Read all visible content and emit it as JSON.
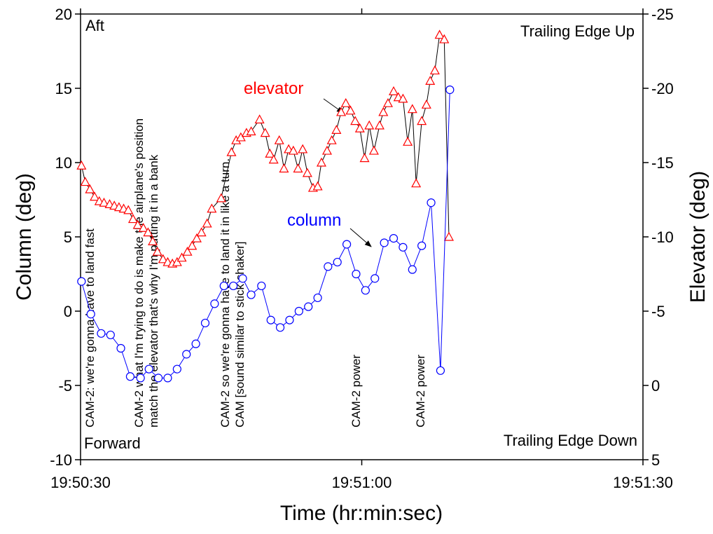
{
  "chart_data": {
    "type": "line",
    "x_label": "Time (hr:min:sec)",
    "y_label": "Column (deg)",
    "y2_label": "Elevator (deg)",
    "xlim": [
      "19:50:30",
      "19:51:30"
    ],
    "xticks": [
      "19:50:30",
      "19:51:00",
      "19:51:30"
    ],
    "ylim": [
      -10,
      20
    ],
    "yticks": [
      -10,
      -5,
      0,
      5,
      10,
      15,
      20
    ],
    "y2lim": [
      5,
      -25
    ],
    "y2ticks": [
      5,
      0,
      -5,
      -10,
      -15,
      -20,
      -25
    ],
    "corner_labels": [
      "Aft",
      "Forward",
      "Trailing Edge Up",
      "Trailing Edge Down"
    ],
    "annotations": [
      "CAM-2: we're gonna have to land fast",
      "CAM-2 what I'm trying to do is make the airplane's position",
      "match the elevator that's why I'm putting it in a bank",
      "CAM-2 so we're gonna have to land it in like a turn.",
      "CAM [sound similar to stick shaker]",
      "CAM-2 power",
      "CAM-2 power"
    ],
    "series": [
      {
        "name": "elevator",
        "color": "#ff0000",
        "line_color": "#000000",
        "marker": "triangle",
        "axis": "y2",
        "x": [
          "19:50:30.1",
          "19:50:30.5",
          "19:50:31.0",
          "19:50:31.5",
          "19:50:32.0",
          "19:50:32.5",
          "19:50:33.1",
          "19:50:33.6",
          "19:50:34.1",
          "19:50:34.6",
          "19:50:35.1",
          "19:50:35.6",
          "19:50:36.1",
          "19:50:36.7",
          "19:50:37.2",
          "19:50:37.7",
          "19:50:38.2",
          "19:50:38.8",
          "19:50:39.3",
          "19:50:39.8",
          "19:50:40.3",
          "19:50:40.8",
          "19:50:41.4",
          "19:50:41.9",
          "19:50:42.4",
          "19:50:42.9",
          "19:50:43.5",
          "19:50:44.0",
          "19:50:45.0",
          "19:50:46.1",
          "19:50:46.6",
          "19:50:47.1",
          "19:50:47.7",
          "19:50:48.2",
          "19:50:49.1",
          "19:50:49.7",
          "19:50:50.2",
          "19:50:50.6",
          "19:50:51.2",
          "19:50:51.7",
          "19:50:52.2",
          "19:50:52.7",
          "19:50:53.2",
          "19:50:53.7",
          "19:50:54.2",
          "19:50:54.8",
          "19:50:55.3",
          "19:50:55.7",
          "19:50:56.3",
          "19:50:56.8",
          "19:50:57.3",
          "19:50:57.8",
          "19:50:58.3",
          "19:50:58.8",
          "19:50:59.3",
          "19:50:59.8",
          "19:51:00.3",
          "19:51:00.8",
          "19:51:01.3",
          "19:51:01.9",
          "19:51:02.3",
          "19:51:02.8",
          "19:51:03.4",
          "19:51:03.9",
          "19:51:04.4",
          "19:51:04.9",
          "19:51:05.4",
          "19:51:05.8",
          "19:51:06.4",
          "19:51:06.9",
          "19:51:07.3",
          "19:51:07.8",
          "19:51:08.3",
          "19:51:08.8",
          "19:51:09.3"
        ],
        "values": [
          -14.8,
          -13.7,
          -13.2,
          -12.7,
          -12.4,
          -12.3,
          -12.2,
          -12.1,
          -12.0,
          -11.9,
          -11.8,
          -11.2,
          -10.8,
          -10.6,
          -10.3,
          -9.7,
          -9.0,
          -8.5,
          -8.3,
          -8.2,
          -8.3,
          -8.6,
          -9.0,
          -9.4,
          -9.9,
          -10.3,
          -10.9,
          -11.9,
          -12.6,
          -15.7,
          -16.5,
          -16.7,
          -17.0,
          -17.1,
          -17.9,
          -17.0,
          -15.6,
          -15.2,
          -16.5,
          -14.6,
          -15.9,
          -15.8,
          -14.6,
          -15.9,
          -14.3,
          -13.3,
          -13.4,
          -15.0,
          -15.8,
          -16.5,
          -17.2,
          -18.4,
          -19.0,
          -18.5,
          -17.8,
          -17.3,
          -15.3,
          -17.5,
          -15.8,
          -17.5,
          -18.4,
          -19.0,
          -19.8,
          -19.4,
          -19.3,
          -16.4,
          -18.6,
          -13.6,
          -17.8,
          -18.9,
          -20.5,
          -21.2,
          -23.6,
          -23.3,
          -10.0
        ]
      },
      {
        "name": "column",
        "color": "#0000ff",
        "line_color": "#0000ff",
        "marker": "circle",
        "x": [
          "19:50:30.1",
          "19:50:31.1",
          "19:50:32.2",
          "19:50:33.2",
          "19:50:34.3",
          "19:50:35.3",
          "19:50:36.4",
          "19:50:37.3",
          "19:50:38.3",
          "19:50:39.3",
          "19:50:40.3",
          "19:50:41.3",
          "19:50:42.3",
          "19:50:43.3",
          "19:50:44.3",
          "19:50:45.3",
          "19:50:46.3",
          "19:50:47.3",
          "19:50:48.2",
          "19:50:49.3",
          "19:50:50.3",
          "19:50:51.3",
          "19:50:52.3",
          "19:50:53.3",
          "19:50:54.3",
          "19:50:55.3",
          "19:50:56.4",
          "19:50:57.4",
          "19:50:58.4",
          "19:50:59.4",
          "19:51:00.4",
          "19:51:01.4",
          "19:51:02.4",
          "19:51:03.4",
          "19:51:04.4",
          "19:51:05.4",
          "19:51:06.4",
          "19:51:07.4",
          "19:51:08.4",
          "19:51:09.4"
        ],
        "values": [
          2.0,
          -0.2,
          -1.5,
          -1.6,
          -2.5,
          -4.4,
          -4.5,
          -3.9,
          -4.5,
          -4.5,
          -3.9,
          -2.9,
          -2.2,
          -0.8,
          0.5,
          1.7,
          1.7,
          2.2,
          1.1,
          1.7,
          -0.6,
          -1.1,
          -0.6,
          0.0,
          0.3,
          0.9,
          3.0,
          3.3,
          4.5,
          2.5,
          1.4,
          2.2,
          4.6,
          4.9,
          4.3,
          2.8,
          4.4,
          7.3,
          -4.0,
          14.9
        ]
      }
    ]
  }
}
